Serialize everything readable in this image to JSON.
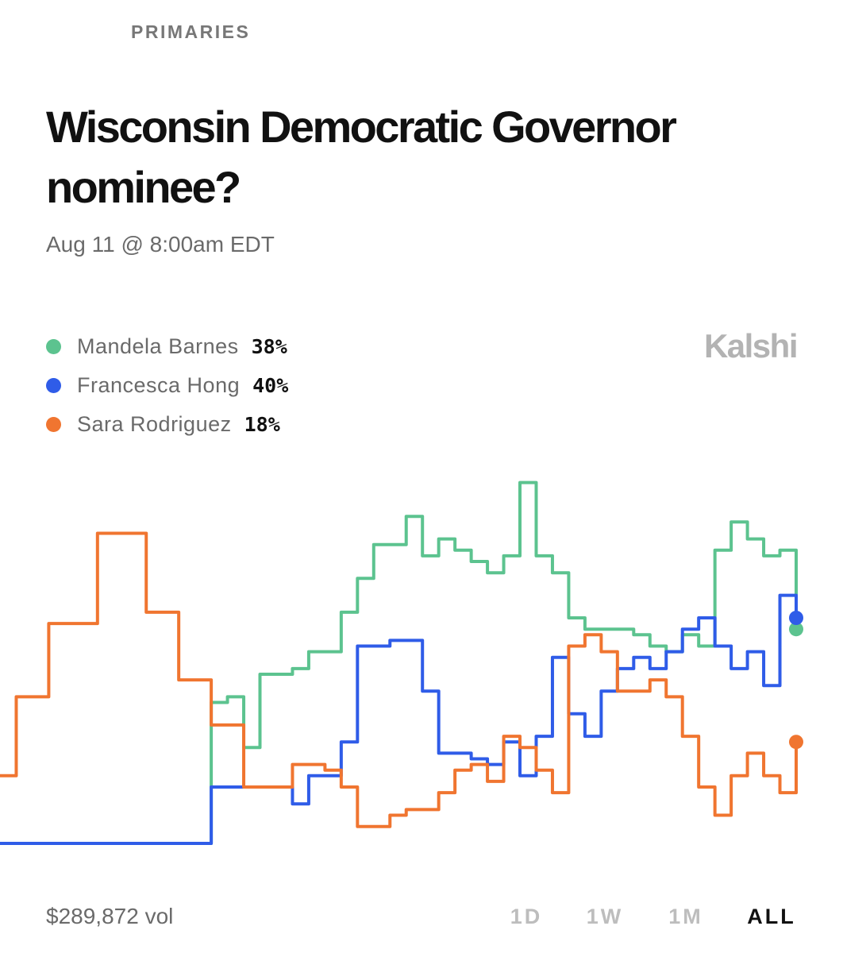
{
  "header": {
    "category": "PRIMARIES",
    "brand": "Kalshi"
  },
  "chart_data": {
    "type": "line",
    "title": "Wisconsin Democratic Governor nominee?",
    "subtitle": "Aug 11 @ 8:00am EDT",
    "ylim": [
      0,
      65
    ],
    "step": true,
    "series": [
      {
        "name": "Mandela Barnes",
        "color": "#5cc38f",
        "label": "38%",
        "values": [
          0,
          0,
          0,
          0,
          0,
          0,
          0,
          0,
          0,
          0,
          0,
          0,
          0,
          25,
          26,
          17,
          30,
          30,
          31,
          34,
          34,
          41,
          47,
          53,
          53,
          58,
          51,
          54,
          52,
          50,
          48,
          51,
          64,
          51,
          48,
          40,
          38,
          38,
          38,
          37,
          35,
          34,
          37,
          35,
          52,
          57,
          54,
          51,
          52,
          38
        ]
      },
      {
        "name": "Francesca Hong",
        "color": "#2f5ce8",
        "label": "40%",
        "values": [
          0,
          0,
          0,
          0,
          0,
          0,
          0,
          0,
          0,
          0,
          0,
          0,
          0,
          10,
          10,
          10,
          10,
          10,
          7,
          12,
          12,
          18,
          35,
          35,
          36,
          36,
          27,
          16,
          16,
          15,
          14,
          18,
          12,
          19,
          33,
          23,
          19,
          27,
          31,
          33,
          31,
          34,
          38,
          40,
          35,
          31,
          34,
          28,
          44,
          40
        ]
      },
      {
        "name": "Sara Rodriguez",
        "color": "#f07530",
        "label": "18%",
        "values": [
          12,
          26,
          26,
          39,
          39,
          39,
          55,
          55,
          55,
          41,
          41,
          29,
          29,
          21,
          21,
          10,
          10,
          10,
          14,
          14,
          13,
          10,
          3,
          3,
          5,
          6,
          6,
          9,
          13,
          14,
          11,
          19,
          17,
          13,
          9,
          35,
          37,
          34,
          27,
          27,
          29,
          26,
          19,
          10,
          5,
          12,
          16,
          12,
          9,
          18
        ]
      }
    ]
  },
  "footer": {
    "volume": "$289,872 vol",
    "ranges": [
      "1D",
      "1W",
      "1M",
      "ALL"
    ],
    "active_range": 3
  }
}
